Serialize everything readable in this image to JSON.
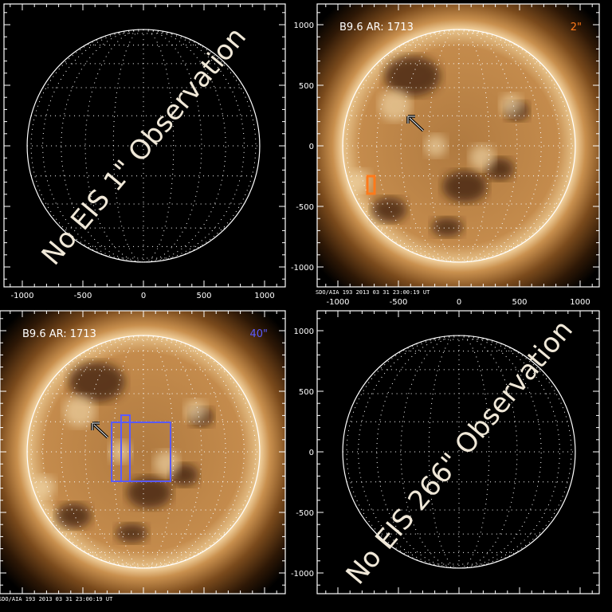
{
  "panels": [
    {
      "id": "top-left",
      "has_image": false,
      "message": "No EIS 1\" Observation",
      "x_tick_labels": [
        "-1000",
        "-500",
        "0",
        "500",
        "1000"
      ]
    },
    {
      "id": "top-right",
      "has_image": true,
      "flare_label": "B9.6 AR: 1713",
      "slit_label": "2\"",
      "slit_color": "#ff7a1a",
      "timestamp": "SDO/AIA 193   2013 03 31 23:00:19 UT",
      "x_tick_labels": [
        "-1000",
        "-500",
        "0",
        "500",
        "1000"
      ],
      "y_tick_labels": [
        "1000",
        "500",
        "0",
        "-500",
        "-1000"
      ]
    },
    {
      "id": "bottom-left",
      "has_image": true,
      "flare_label": "B9.6 AR: 1713",
      "slit_label": "40\"",
      "slit_color": "#5a5aff",
      "timestamp": "SDO/AIA 193   2013 03 31 23:00:19 UT"
    },
    {
      "id": "bottom-right",
      "has_image": false,
      "message": "No EIS 266\" Observation",
      "y_tick_labels": [
        "1000",
        "500",
        "0",
        "-500",
        "-1000"
      ]
    }
  ],
  "icons": {
    "arrow": "arrow-up-left-icon"
  }
}
